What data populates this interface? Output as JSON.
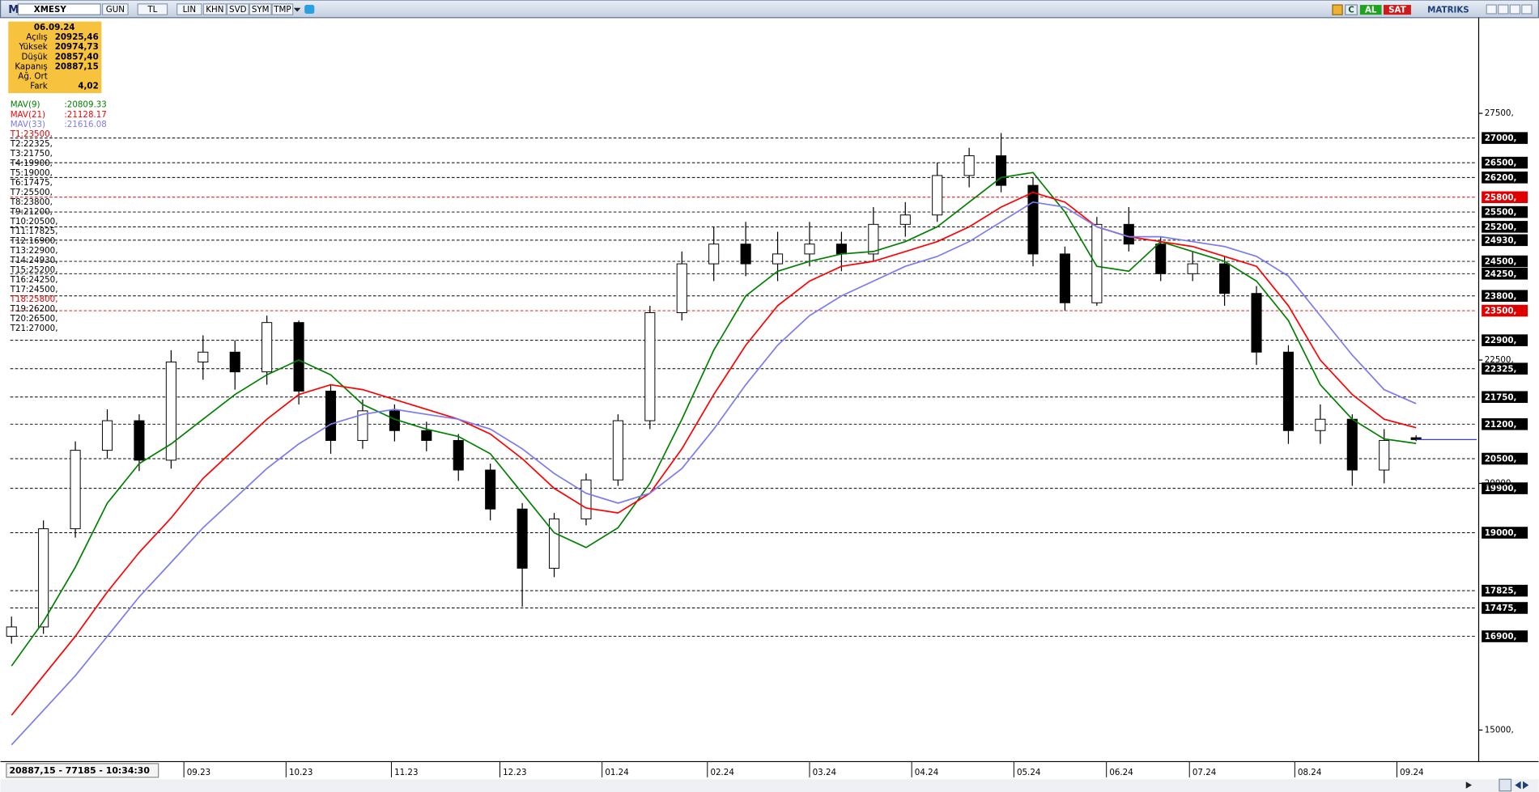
{
  "toolbar": {
    "logo": "M",
    "symbol": "XMESY",
    "buttons": [
      "GUN",
      "TL",
      "LIN",
      "KHN",
      "SVD",
      "SYM",
      "TMP"
    ],
    "c_button": "C",
    "buy": "AL",
    "sell": "SAT",
    "brand": "MATRIKS"
  },
  "info_box": {
    "date": "06.09.24",
    "rows": [
      {
        "label": "Açılış",
        "value": "20925,46"
      },
      {
        "label": "Yüksek",
        "value": "20974,73"
      },
      {
        "label": "Düşük",
        "value": "20857,40"
      },
      {
        "label": "Kapanış",
        "value": "20887,15"
      },
      {
        "label": "Ağ. Ort"
      },
      {
        "label": "Fark",
        "value": "4,02"
      }
    ]
  },
  "status": "20887,15 - 77185 - 10:34:30",
  "chart_data": {
    "type": "candlestick",
    "categories": [
      null,
      null,
      null,
      null,
      null,
      null,
      null,
      null,
      null,
      null,
      null,
      null,
      null,
      null,
      null,
      null,
      null,
      null,
      null,
      null,
      null,
      null,
      null,
      null,
      null,
      null,
      null,
      null,
      null,
      null,
      null,
      null,
      null,
      null,
      null,
      null,
      null,
      null,
      null,
      null,
      null,
      null,
      null,
      null,
      null
    ],
    "open": [
      16900,
      17090,
      19080,
      20670,
      21270,
      20470,
      22460,
      22660,
      22260,
      23260,
      21870,
      20870,
      21470,
      21070,
      20870,
      20270,
      19480,
      18280,
      19280,
      20070,
      21270,
      23460,
      24450,
      24850,
      24450,
      24650,
      24850,
      24650,
      25250,
      25440,
      26240,
      26640,
      26040,
      24650,
      23660,
      25250,
      24850,
      24250,
      24450,
      23850,
      22660,
      21070,
      21300,
      20270,
      20925.46
    ],
    "high": [
      17300,
      19250,
      20850,
      21500,
      21400,
      22700,
      23000,
      22900,
      23400,
      23300,
      22000,
      21700,
      21600,
      21250,
      21000,
      20400,
      19600,
      19400,
      20200,
      21400,
      23600,
      24700,
      25200,
      25300,
      25100,
      25300,
      25100,
      25600,
      25700,
      26500,
      26800,
      27100,
      26200,
      24800,
      25400,
      25600,
      25000,
      24700,
      24600,
      24000,
      22800,
      21600,
      21400,
      21100,
      20974.73
    ],
    "low": [
      16750,
      16950,
      18900,
      20500,
      20250,
      20300,
      22100,
      21900,
      22000,
      21600,
      20600,
      20700,
      20850,
      20650,
      20050,
      19250,
      17500,
      18100,
      19150,
      19950,
      21100,
      23300,
      24100,
      24200,
      24100,
      24400,
      24300,
      24500,
      25000,
      25300,
      26000,
      25900,
      24400,
      23500,
      23600,
      24700,
      24100,
      24100,
      23600,
      22400,
      20800,
      20800,
      19950,
      20000,
      20857.4
    ],
    "close": [
      17090,
      19080,
      20670,
      21270,
      20470,
      22460,
      22660,
      22260,
      23260,
      21870,
      20870,
      21470,
      21070,
      20870,
      20270,
      19480,
      18280,
      19280,
      20070,
      21270,
      23460,
      24450,
      24850,
      24450,
      24650,
      24850,
      24650,
      25250,
      25440,
      26240,
      26640,
      26040,
      24650,
      23660,
      25250,
      24850,
      24250,
      24450,
      23850,
      22660,
      21070,
      21300,
      20270,
      20870,
      20887.15
    ],
    "up_color": "#ffffff",
    "down_color": "#000000",
    "last_price_color": "#3b3bd0",
    "series": [
      {
        "name": "MAV(9)",
        "legend_value": ":20809.33",
        "color": "#008000",
        "values": [
          16300,
          17200,
          18300,
          19600,
          20400,
          20800,
          21300,
          21800,
          22200,
          22500,
          22200,
          21600,
          21300,
          21100,
          20950,
          20600,
          19800,
          19000,
          18700,
          19100,
          20000,
          21300,
          22700,
          23800,
          24300,
          24500,
          24650,
          24700,
          24900,
          25200,
          25700,
          26200,
          26300,
          25500,
          24400,
          24300,
          24900,
          24700,
          24500,
          24100,
          23300,
          22000,
          21300,
          20900,
          20809.33
        ]
      },
      {
        "name": "MAV(21)",
        "legend_value": ":21128.17",
        "color": "#ff0000",
        "values": [
          15300,
          16100,
          16900,
          17800,
          18600,
          19300,
          20100,
          20700,
          21300,
          21800,
          22000,
          21900,
          21700,
          21500,
          21300,
          21000,
          20500,
          19900,
          19500,
          19400,
          19800,
          20700,
          21800,
          22800,
          23600,
          24100,
          24400,
          24500,
          24700,
          24900,
          25200,
          25600,
          25900,
          25700,
          25200,
          25000,
          24900,
          24800,
          24600,
          24400,
          23600,
          22500,
          21800,
          21300,
          21128.17
        ]
      },
      {
        "name": "MAV(33)",
        "legend_value": ":21616.08",
        "color": "#7b7bf0",
        "values": [
          14700,
          15400,
          16100,
          16900,
          17700,
          18400,
          19100,
          19700,
          20300,
          20800,
          21200,
          21400,
          21500,
          21400,
          21300,
          21100,
          20700,
          20200,
          19800,
          19600,
          19800,
          20300,
          21100,
          22000,
          22800,
          23400,
          23800,
          24100,
          24400,
          24600,
          24900,
          25300,
          25700,
          25600,
          25200,
          25000,
          25000,
          24900,
          24800,
          24600,
          24200,
          23400,
          22600,
          21900,
          21616.08
        ]
      }
    ],
    "levels": [
      {
        "label": "T1:23500,",
        "value": 23500,
        "axis_label": "23500,",
        "color": "#e00000"
      },
      {
        "label": "T2:22325,",
        "value": 22325,
        "axis_label": "22325,",
        "color": "#000000"
      },
      {
        "label": "T3:21750,",
        "value": 21750,
        "axis_label": "21750,",
        "color": "#000000"
      },
      {
        "label": "T4:19900,",
        "value": 19900,
        "axis_label": "19900,",
        "color": "#000000"
      },
      {
        "label": "T5:19000,",
        "value": 19000,
        "axis_label": "19000,",
        "color": "#000000"
      },
      {
        "label": "T6:17475,",
        "value": 17475,
        "axis_label": "17475,",
        "color": "#000000"
      },
      {
        "label": "T7:25500,",
        "value": 25500,
        "axis_label": "25500,",
        "color": "#000000"
      },
      {
        "label": "T8:23800,",
        "value": 23800,
        "axis_label": "23800,",
        "color": "#000000"
      },
      {
        "label": "T9:21200,",
        "value": 21200,
        "axis_label": "21200,",
        "color": "#000000"
      },
      {
        "label": "T10:20500,",
        "value": 20500,
        "axis_label": "20500,",
        "color": "#000000"
      },
      {
        "label": "T11:17825,",
        "value": 17825,
        "axis_label": "17825,",
        "color": "#000000"
      },
      {
        "label": "T12:16900,",
        "value": 16900,
        "axis_label": "16900,",
        "color": "#000000"
      },
      {
        "label": "T13:22900,",
        "value": 22900,
        "axis_label": "22900,",
        "color": "#000000"
      },
      {
        "label": "T14:24930,",
        "value": 24930,
        "axis_label": "24930,",
        "color": "#000000"
      },
      {
        "label": "T15:25200,",
        "value": 25200,
        "axis_label": "25200,",
        "color": "#000000"
      },
      {
        "label": "T16:24250,",
        "value": 24250,
        "axis_label": "24250,",
        "color": "#000000"
      },
      {
        "label": "T17:24500,",
        "value": 24500,
        "axis_label": "24500,",
        "color": "#000000"
      },
      {
        "label": "T18:25800,",
        "value": 25800,
        "axis_label": "25800,",
        "color": "#e00000"
      },
      {
        "label": "T19:26200,",
        "value": 26200,
        "axis_label": "26200,",
        "color": "#000000"
      },
      {
        "label": "T20:26500,",
        "value": 26500,
        "axis_label": "26500,",
        "color": "#000000"
      },
      {
        "label": "T21:27000,",
        "value": 27000,
        "axis_label": "27000,",
        "color": "#000000"
      }
    ],
    "ylim": [
      14400,
      29400
    ],
    "yticks": [
      {
        "value": 27500,
        "label": "27500,"
      },
      {
        "value": 22500,
        "label": "22500,"
      },
      {
        "value": 20000,
        "label": "20000,"
      },
      {
        "value": 15000,
        "label": "15000,"
      }
    ],
    "xlim": [
      -0.1,
      45.9
    ],
    "xticks": [
      {
        "value": 5.4,
        "label": "09.23"
      },
      {
        "value": 8.6,
        "label": "10.23"
      },
      {
        "value": 11.9,
        "label": "11.23"
      },
      {
        "value": 15.3,
        "label": "12.23"
      },
      {
        "value": 18.5,
        "label": "01.24"
      },
      {
        "value": 21.8,
        "label": "02.24"
      },
      {
        "value": 25.0,
        "label": "03.24"
      },
      {
        "value": 28.2,
        "label": "04.24"
      },
      {
        "value": 31.4,
        "label": "05.24"
      },
      {
        "value": 34.3,
        "label": "06.24"
      },
      {
        "value": 36.9,
        "label": "07.24"
      },
      {
        "value": 40.2,
        "label": "08.24"
      },
      {
        "value": 43.4,
        "label": "09.24"
      }
    ]
  }
}
